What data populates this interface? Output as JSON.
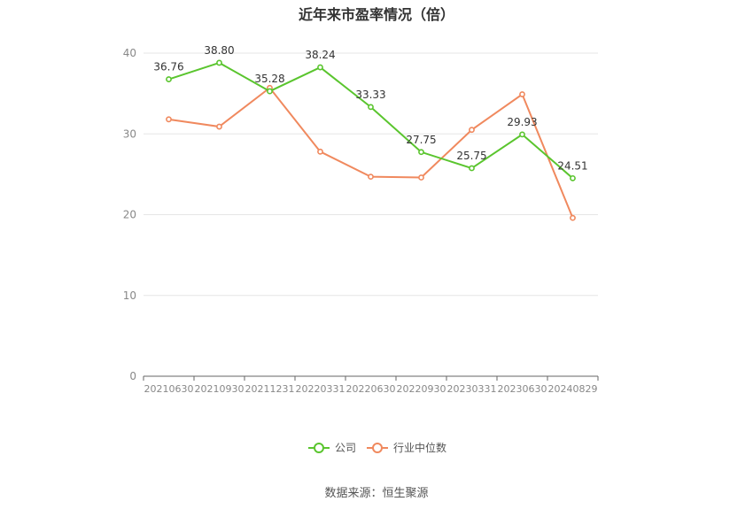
{
  "title": "近年来市盈率情况（倍）",
  "source": "数据来源：恒生聚源",
  "chart_data": {
    "type": "line",
    "title": "近年来市盈率情况（倍）",
    "categories": [
      "20210630",
      "20210930",
      "20211231",
      "20220331",
      "20220630",
      "20220930",
      "20230331",
      "20230630",
      "20240829"
    ],
    "ylim": [
      0,
      40
    ],
    "yticks": [
      0,
      10,
      20,
      30,
      40
    ],
    "grid": true,
    "legend_position": "bottom",
    "series": [
      {
        "name": "公司",
        "color": "#5ac52e",
        "values": [
          36.76,
          38.8,
          35.28,
          38.24,
          33.33,
          27.75,
          25.75,
          29.93,
          24.51
        ],
        "labels": [
          "36.76",
          "38.80",
          "35.28",
          "38.24",
          "33.33",
          "27.75",
          "25.75",
          "29.93",
          "24.51"
        ]
      },
      {
        "name": "行业中位数",
        "color": "#f0895e",
        "values": [
          31.8,
          30.9,
          35.7,
          27.8,
          24.7,
          24.6,
          30.5,
          34.9,
          19.6
        ]
      }
    ]
  }
}
